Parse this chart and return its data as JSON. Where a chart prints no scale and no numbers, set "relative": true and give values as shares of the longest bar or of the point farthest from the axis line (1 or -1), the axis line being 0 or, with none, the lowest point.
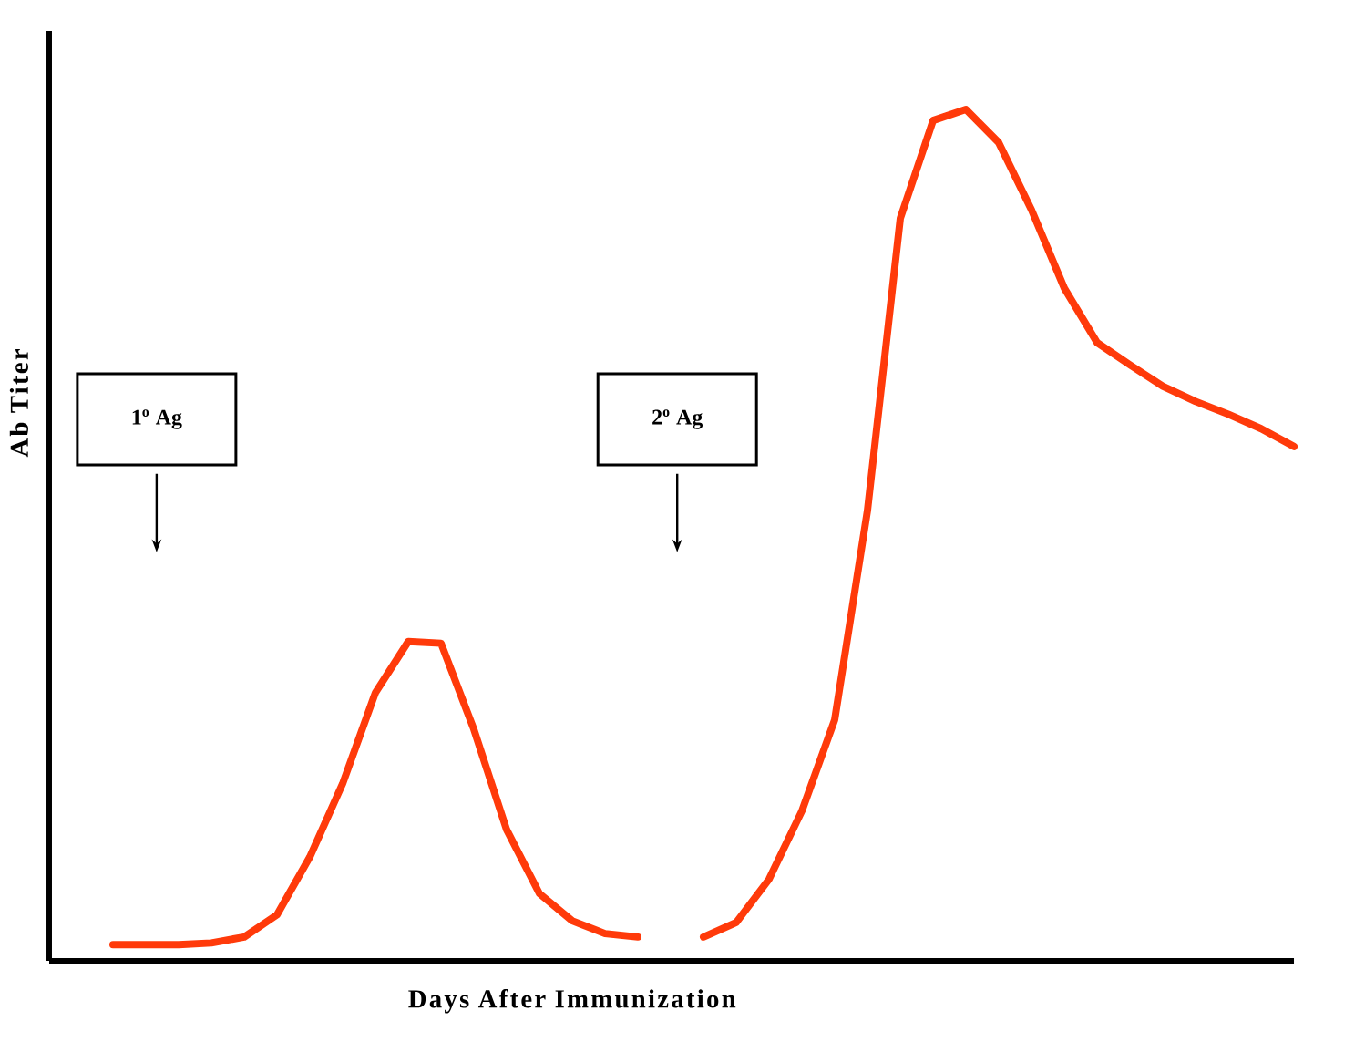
{
  "chart_data": {
    "type": "line",
    "relative": true,
    "xlabel": "Days After Immunization",
    "ylabel": "Ab Titer",
    "categories": [
      null,
      null,
      null,
      null,
      null,
      null,
      null,
      null,
      null,
      null,
      null,
      null,
      null,
      null,
      null,
      null,
      null,
      null,
      null,
      null,
      null,
      null,
      null,
      null,
      null,
      null,
      null,
      null,
      null,
      null,
      null,
      null,
      null,
      null,
      null,
      null,
      null
    ],
    "series": [
      {
        "color": "#ff3a0a",
        "values": [
          0.019,
          0.019,
          0.019,
          0.021,
          0.028,
          0.054,
          0.122,
          0.208,
          0.315,
          0.375,
          0.373,
          0.272,
          0.154,
          0.079,
          0.047,
          0.032,
          0.028,
          null,
          null,
          null,
          null,
          null,
          null,
          null,
          null,
          null,
          null,
          null,
          null,
          null,
          null,
          null,
          null,
          null,
          null,
          null,
          null
        ]
      },
      {
        "color": "#ff3a0a",
        "values": [
          null,
          null,
          null,
          null,
          null,
          null,
          null,
          null,
          null,
          null,
          null,
          null,
          null,
          null,
          null,
          null,
          null,
          null,
          0.028,
          0.045,
          0.096,
          0.176,
          0.283,
          0.529,
          0.872,
          0.987,
          1.0,
          0.961,
          0.882,
          0.79,
          0.726,
          0.7,
          0.675,
          0.657,
          0.642,
          0.625,
          0.604
        ]
      }
    ],
    "annotations": [
      "1$^{o}$ Ag",
      "2$^{o}$ Ag"
    ],
    "marker": "none",
    "line_style": "solid"
  }
}
